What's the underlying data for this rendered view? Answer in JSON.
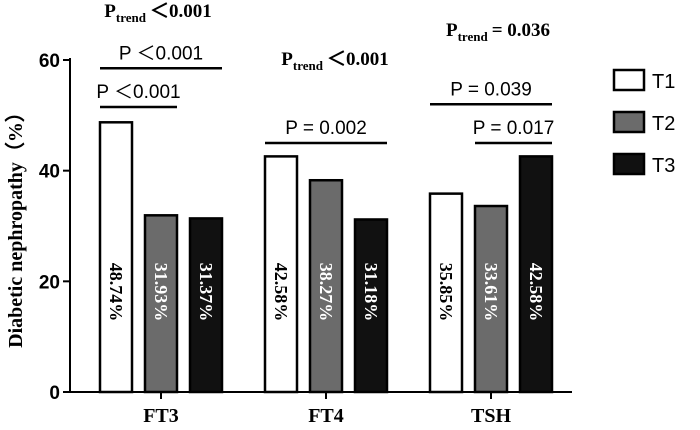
{
  "chart_data": {
    "type": "bar",
    "ylabel": "Diabetic nephropathy（%）",
    "ylim": [
      0,
      60
    ],
    "yticks": [
      "0",
      "20",
      "40",
      "60"
    ],
    "categories": [
      "FT3",
      "FT4",
      "TSH"
    ],
    "series": [
      {
        "name": "T1",
        "color": "#ffffff",
        "values": [
          48.74,
          42.58,
          35.85
        ],
        "labels": [
          "48.74%",
          "42.58%",
          "35.85%"
        ]
      },
      {
        "name": "T2",
        "color": "#6b6b6b",
        "values": [
          31.93,
          38.27,
          33.61
        ],
        "labels": [
          "31.93%",
          "38.27%",
          "33.61%"
        ]
      },
      {
        "name": "T3",
        "color": "#111111",
        "values": [
          31.37,
          31.18,
          42.58
        ],
        "labels": [
          "31.37%",
          "31.18%",
          "42.58%"
        ]
      }
    ],
    "legend_position": "right",
    "trend_labels": [
      {
        "category": "FT3",
        "prefix": "P",
        "sub": "trend",
        "value": "＜0.001"
      },
      {
        "category": "FT4",
        "prefix": "P",
        "sub": "trend",
        "value": "＜0.001"
      },
      {
        "category": "TSH",
        "prefix": "P",
        "sub": "trend",
        "value": "= 0.036"
      }
    ],
    "comparisons": [
      {
        "category": "FT3",
        "from": "T1",
        "to": "T3",
        "label": "P ＜0.001",
        "y": 58.5
      },
      {
        "category": "FT3",
        "from": "T1",
        "to": "T2",
        "label": "P ＜0.001",
        "y": 51.5
      },
      {
        "category": "FT4",
        "from": "T1",
        "to": "T3",
        "label": "P = 0.002",
        "y": 45
      },
      {
        "category": "TSH",
        "from": "T1",
        "to": "T3",
        "label": "P = 0.039",
        "y": 52
      },
      {
        "category": "TSH",
        "from": "T2",
        "to": "T3",
        "label": "P = 0.017",
        "y": 45
      }
    ]
  }
}
